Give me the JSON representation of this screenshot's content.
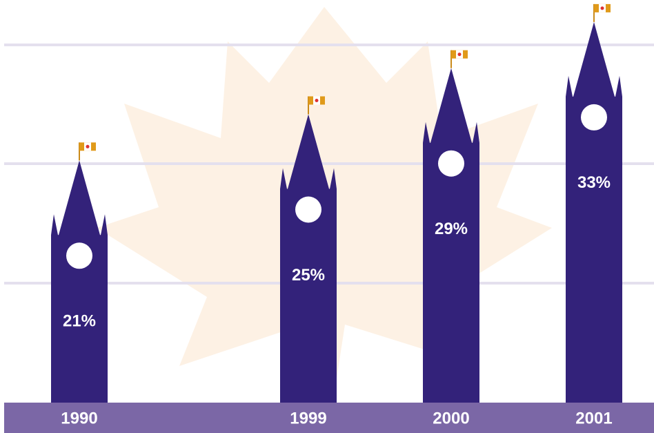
{
  "chart_data": {
    "type": "bar",
    "categories": [
      "1990",
      "1999",
      "2000",
      "2001"
    ],
    "values": [
      21,
      25,
      29,
      33
    ],
    "value_labels": [
      "21%",
      "25%",
      "29%",
      "33%"
    ],
    "color": "#33227a"
  }
}
